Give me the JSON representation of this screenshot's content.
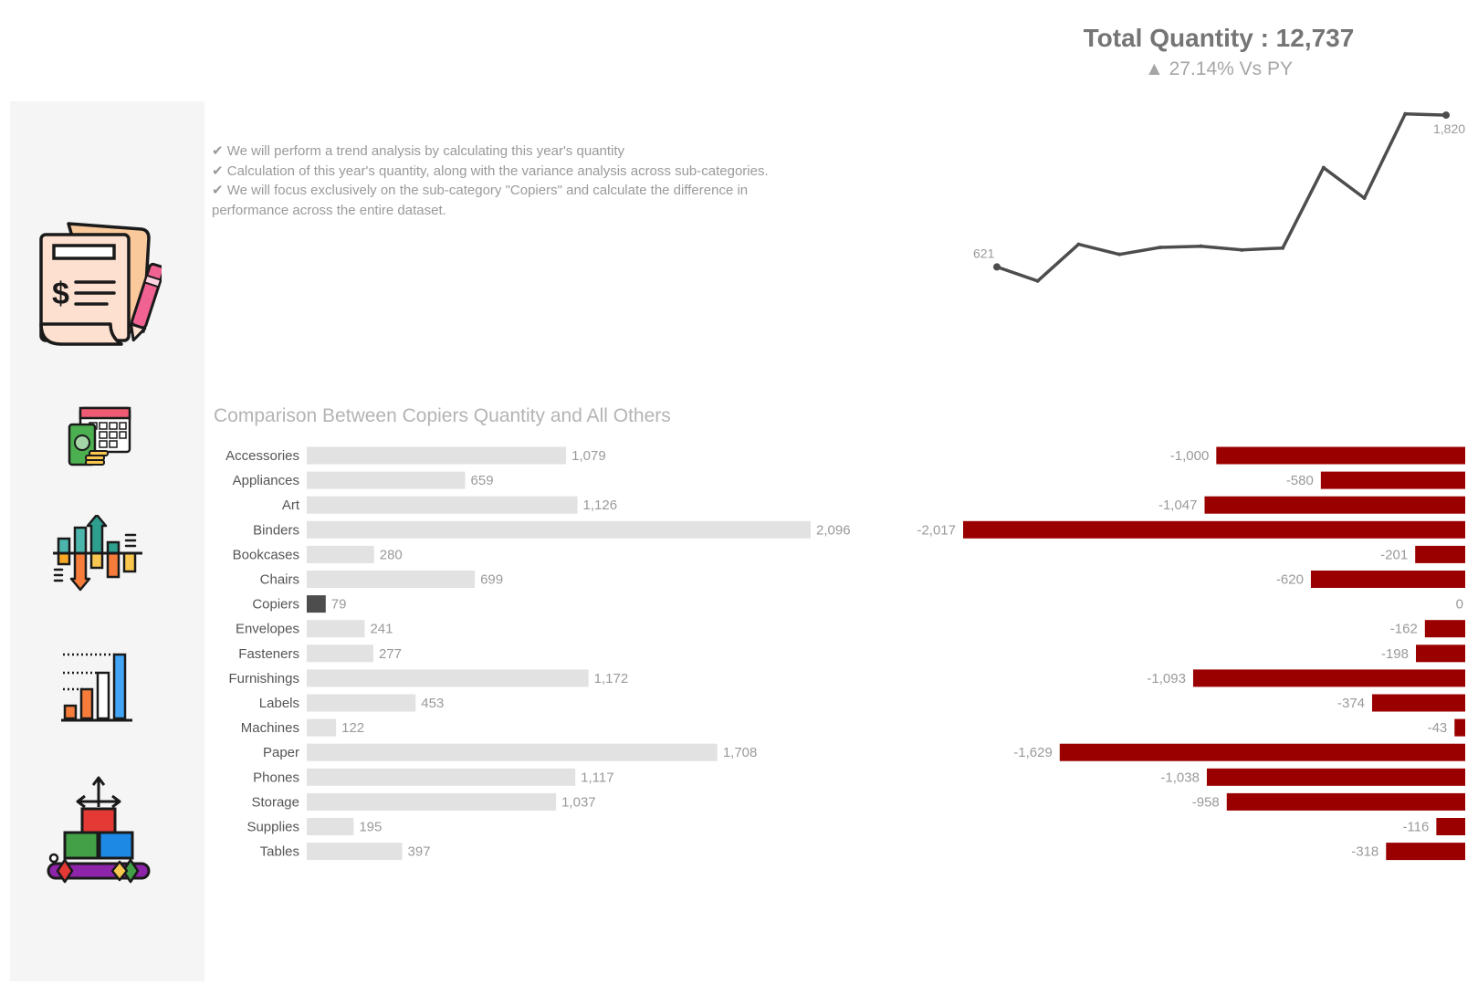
{
  "kpi": {
    "title": "Total Quantity :  12,737",
    "change_arrow": "▲",
    "change_text": "27.14% Vs PY"
  },
  "notes": [
    "✔ We will perform a trend analysis by calculating this year's quantity",
    "✔ Calculation of this year's quantity, along with the variance analysis across sub-categories.",
    "✔ We will focus exclusively on the sub-category \"Copiers\" and calculate the difference in",
    "performance across the entire dataset."
  ],
  "sidebar": {
    "items": [
      {
        "icon": "invoice-document-icon"
      },
      {
        "icon": "calendar-money-icon"
      },
      {
        "icon": "variance-bars-icon"
      },
      {
        "icon": "growth-bar-chart-icon"
      },
      {
        "icon": "product-boxes-icon"
      }
    ]
  },
  "colors": {
    "quantity_bar": "#e2e2e2",
    "highlight_bar": "#4d4d4d",
    "difference_bar": "#9b0000",
    "trend_line": "#4d4d4d",
    "sidebar_bg": "#f5f5f5"
  },
  "chart_data": [
    {
      "type": "line",
      "title": "",
      "x": [
        "1",
        "2",
        "3",
        "4",
        "5",
        "6",
        "7",
        "8",
        "9",
        "10",
        "11",
        "12"
      ],
      "values": [
        621,
        510,
        800,
        720,
        775,
        785,
        755,
        770,
        1405,
        1165,
        1830,
        1820
      ],
      "labels_shown": {
        "first": "621",
        "last": "1,820"
      },
      "ylim": [
        350,
        1900
      ],
      "grid": false
    },
    {
      "type": "bar",
      "orientation": "horizontal",
      "title": "Comparison Between Copiers Quantity and All Others",
      "categories": [
        "Accessories",
        "Appliances",
        "Art",
        "Binders",
        "Bookcases",
        "Chairs",
        "Copiers",
        "Envelopes",
        "Fasteners",
        "Furnishings",
        "Labels",
        "Machines",
        "Paper",
        "Phones",
        "Storage",
        "Supplies",
        "Tables"
      ],
      "series": [
        {
          "values": [
            1079,
            659,
            1126,
            2096,
            280,
            699,
            79,
            241,
            277,
            1172,
            453,
            122,
            1708,
            1117,
            1037,
            195,
            397
          ],
          "labels": [
            "1,079",
            "659",
            "1,126",
            "2,096",
            "280",
            "699",
            "79",
            "241",
            "277",
            "1,172",
            "453",
            "122",
            "1,708",
            "1,117",
            "1,037",
            "195",
            "397"
          ]
        },
        {
          "values": [
            -1000,
            -580,
            -1047,
            -2017,
            -201,
            -620,
            0,
            -162,
            -198,
            -1093,
            -374,
            -43,
            -1629,
            -1038,
            -958,
            -116,
            -318
          ],
          "labels": [
            "-1,000",
            "-580",
            "-1,047",
            "-2,017",
            "-201",
            "-620",
            "0",
            "-162",
            "-198",
            "-1,093",
            "-374",
            "-43",
            "-1,629",
            "-1,038",
            "-958",
            "-116",
            "-318"
          ]
        }
      ],
      "highlight": "Copiers",
      "grid": false
    }
  ]
}
